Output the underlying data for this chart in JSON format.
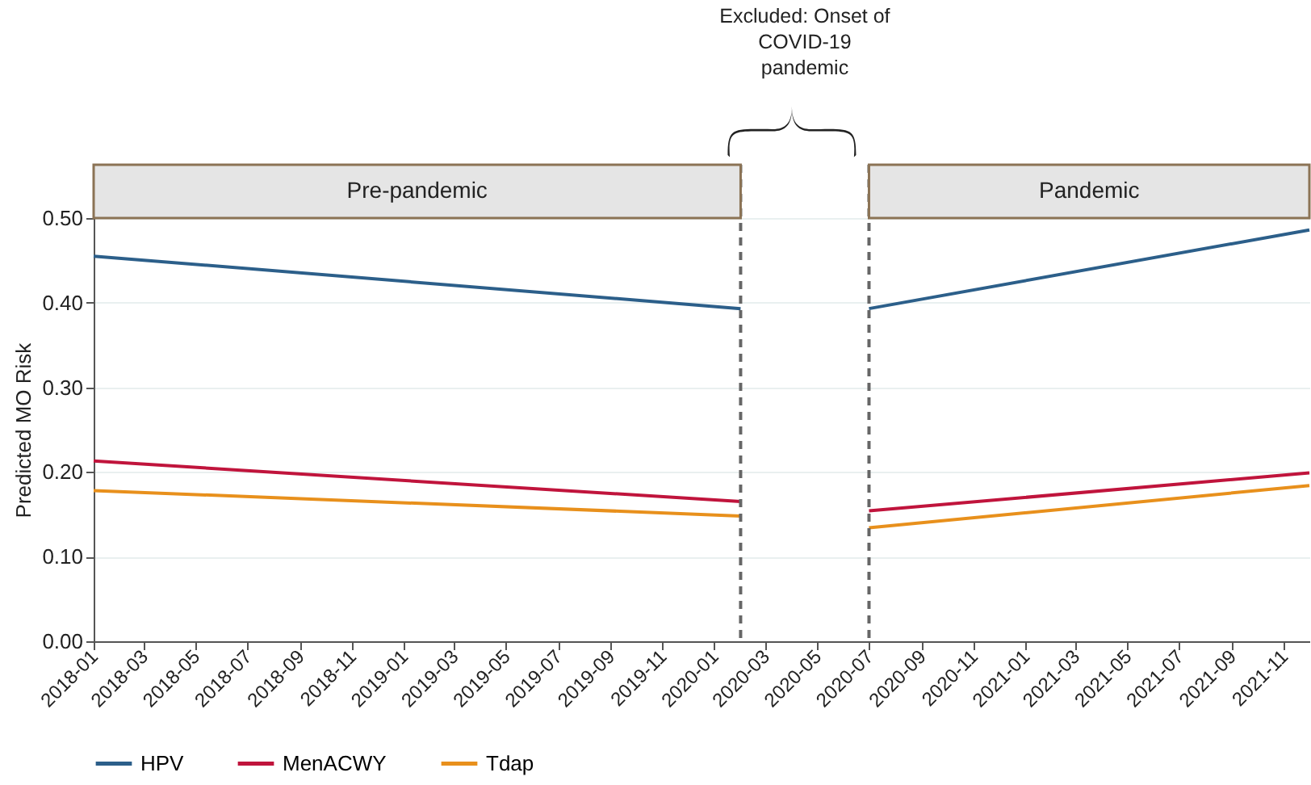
{
  "chart_data": {
    "type": "line",
    "ylabel": "Predicted MO Risk",
    "x": [
      "2018-01",
      "2020-02",
      "2020-04",
      "2020-07",
      "2021-12"
    ],
    "series": [
      {
        "name": "HPV",
        "color": "#2c5f8a",
        "values": [
          0.455,
          0.393,
          null,
          0.393,
          0.486
        ]
      },
      {
        "name": "MenACWY",
        "color": "#c0143c",
        "values": [
          0.213,
          0.165,
          null,
          0.154,
          0.199
        ]
      },
      {
        "name": "Tdap",
        "color": "#e8901c",
        "values": [
          0.178,
          0.148,
          null,
          0.134,
          0.184
        ]
      }
    ],
    "xlim": [
      "2018-01",
      "2021-12"
    ],
    "xticks": [
      "2018-01",
      "2018-03",
      "2018-05",
      "2018-07",
      "2018-09",
      "2018-11",
      "2019-01",
      "2019-03",
      "2019-05",
      "2019-07",
      "2019-09",
      "2019-11",
      "2020-01",
      "2020-03",
      "2020-05",
      "2020-07",
      "2020-09",
      "2020-11",
      "2021-01",
      "2021-03",
      "2021-05",
      "2021-07",
      "2021-09",
      "2021-11"
    ],
    "ylim": [
      0,
      0.5
    ],
    "yticks": [
      {
        "value": 0,
        "label": "0.00"
      },
      {
        "value": 0.1,
        "label": "0.10"
      },
      {
        "value": 0.2,
        "label": "0.20"
      },
      {
        "value": 0.3,
        "label": "0.30"
      },
      {
        "value": 0.4,
        "label": "0.40"
      },
      {
        "value": 0.5,
        "label": "0.50"
      }
    ],
    "grid": "y",
    "legend": "bottom",
    "line_style": "solid",
    "ref_lines": [
      {
        "axis": "x",
        "value": "2020-02",
        "color": "#666666",
        "line_style": "dashed"
      },
      {
        "axis": "x",
        "value": "2020-07",
        "color": "#666666",
        "line_style": "dashed"
      }
    ],
    "annotations": [
      "Pre-pandemic",
      "Excluded: Onset of\nCOVID-19\npandemic",
      "Pandemic"
    ]
  }
}
